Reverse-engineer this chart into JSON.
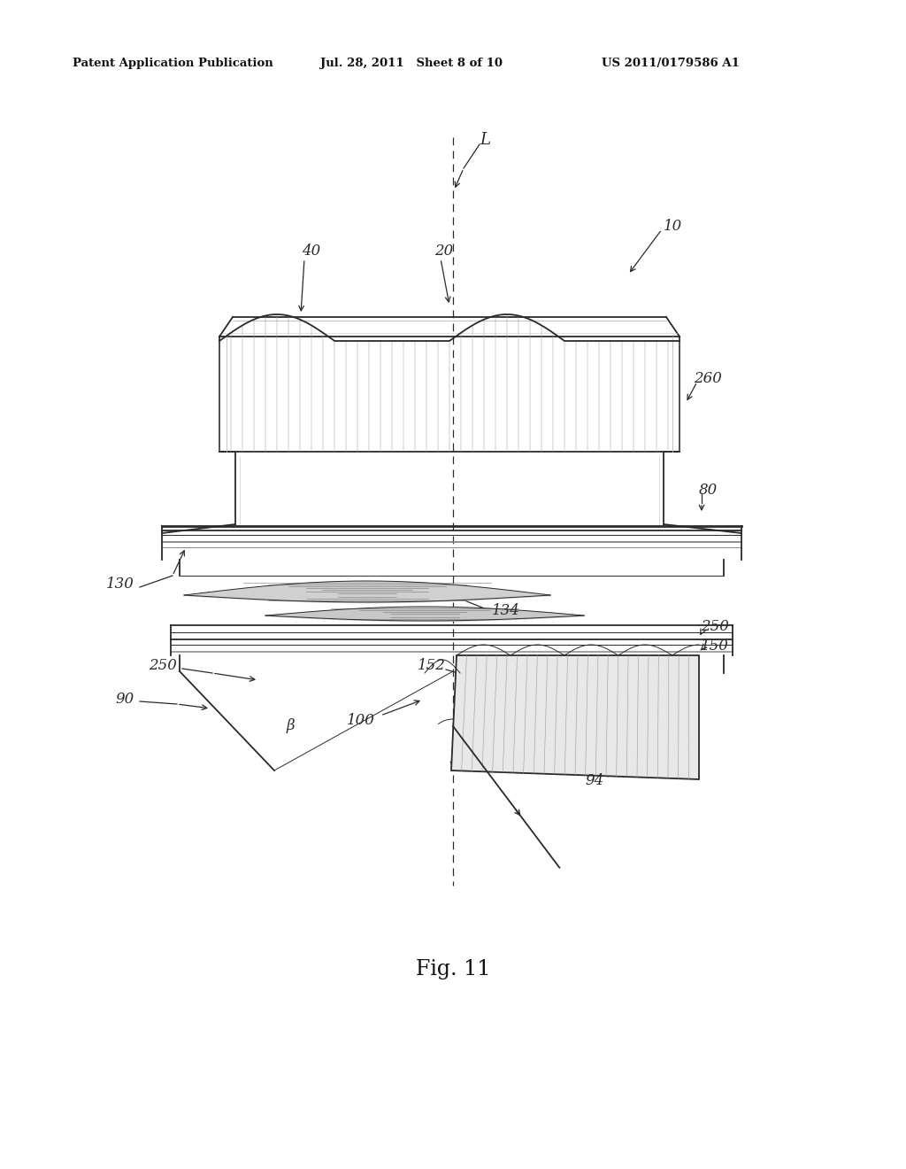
{
  "header_left": "Patent Application Publication",
  "header_mid": "Jul. 28, 2011   Sheet 8 of 10",
  "header_right": "US 2011/0179586 A1",
  "figure_label": "Fig. 11",
  "bg_color": "#ffffff",
  "line_color": "#2a2a2a"
}
